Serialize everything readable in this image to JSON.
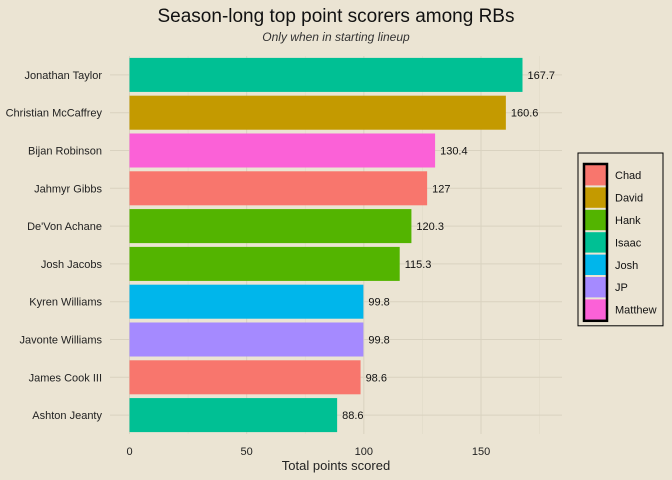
{
  "chart_data": {
    "type": "bar",
    "orientation": "horizontal",
    "title": "Season-long top point scorers among RBs",
    "subtitle": "Only when in starting lineup",
    "xlabel": "Total points scored",
    "ylabel": "",
    "xlim": [
      0,
      180
    ],
    "x_ticks": [
      0,
      50,
      100,
      150
    ],
    "grid": true,
    "legend_position": "right",
    "legend": [
      {
        "name": "Chad",
        "color": "#F8766D"
      },
      {
        "name": "David",
        "color": "#C49A00"
      },
      {
        "name": "Hank",
        "color": "#53B400"
      },
      {
        "name": "Isaac",
        "color": "#00C094"
      },
      {
        "name": "Josh",
        "color": "#00B6EB"
      },
      {
        "name": "JP",
        "color": "#A58AFF"
      },
      {
        "name": "Matthew",
        "color": "#FB61D7"
      }
    ],
    "bars": [
      {
        "player": "Jonathan Taylor",
        "value": 167.7,
        "label": "167.7",
        "owner": "Isaac"
      },
      {
        "player": "Christian McCaffrey",
        "value": 160.6,
        "label": "160.6",
        "owner": "David"
      },
      {
        "player": "Bijan Robinson",
        "value": 130.4,
        "label": "130.4",
        "owner": "Matthew"
      },
      {
        "player": "Jahmyr Gibbs",
        "value": 127,
        "label": "127",
        "owner": "Chad"
      },
      {
        "player": "De'Von Achane",
        "value": 120.3,
        "label": "120.3",
        "owner": "Hank"
      },
      {
        "player": "Josh Jacobs",
        "value": 115.3,
        "label": "115.3",
        "owner": "Hank"
      },
      {
        "player": "Kyren Williams",
        "value": 99.8,
        "label": "99.8",
        "owner": "Josh"
      },
      {
        "player": "Javonte Williams",
        "value": 99.8,
        "label": "99.8",
        "owner": "JP"
      },
      {
        "player": "James Cook III",
        "value": 98.6,
        "label": "98.6",
        "owner": "Chad"
      },
      {
        "player": "Ashton Jeanty",
        "value": 88.6,
        "label": "88.6",
        "owner": "Isaac"
      }
    ]
  }
}
